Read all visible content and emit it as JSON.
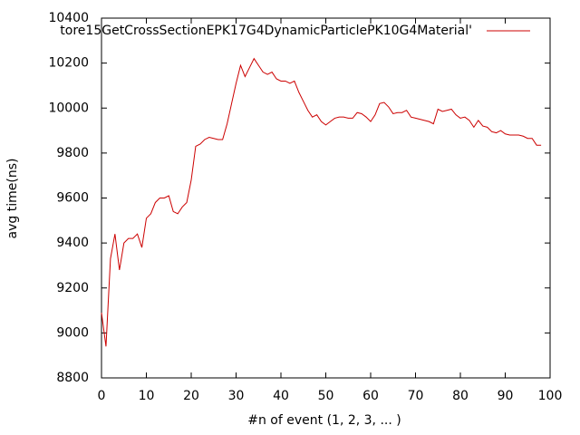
{
  "chart_data": {
    "type": "line",
    "xlabel": "#n of event (1, 2, 3, ... )",
    "ylabel": "avg time(ns)",
    "x": [
      0,
      1,
      2,
      3,
      4,
      5,
      6,
      7,
      8,
      9,
      10,
      11,
      12,
      13,
      14,
      15,
      16,
      17,
      18,
      19,
      20,
      21,
      22,
      23,
      24,
      25,
      26,
      27,
      28,
      29,
      30,
      31,
      32,
      33,
      34,
      35,
      36,
      37,
      38,
      39,
      40,
      41,
      42,
      43,
      44,
      45,
      46,
      47,
      48,
      49,
      50,
      51,
      52,
      53,
      54,
      55,
      56,
      57,
      58,
      59,
      60,
      61,
      62,
      63,
      64,
      65,
      66,
      67,
      68,
      69,
      70,
      71,
      72,
      73,
      74,
      75,
      76,
      77,
      78,
      79,
      80,
      81,
      82,
      83,
      84,
      85,
      86,
      87,
      88,
      89,
      90,
      91,
      92,
      93,
      94,
      95,
      96,
      97,
      98
    ],
    "series": [
      {
        "name": "tore15GetCrossSectionEPK17G4DynamicParticlePK10G4Material'",
        "color": "#cc0000",
        "values": [
          9090,
          8940,
          9330,
          9440,
          9280,
          9400,
          9420,
          9420,
          9440,
          9380,
          9510,
          9530,
          9580,
          9600,
          9600,
          9610,
          9540,
          9530,
          9560,
          9580,
          9680,
          9830,
          9840,
          9860,
          9870,
          9865,
          9860,
          9860,
          9930,
          10020,
          10110,
          10190,
          10140,
          10180,
          10220,
          10190,
          10160,
          10150,
          10160,
          10130,
          10120,
          10120,
          10110,
          10120,
          10070,
          10030,
          9990,
          9960,
          9970,
          9940,
          9925,
          9940,
          9955,
          9960,
          9960,
          9955,
          9955,
          9980,
          9975,
          9960,
          9940,
          9970,
          10020,
          10025,
          10005,
          9975,
          9980,
          9980,
          9990,
          9960,
          9955,
          9950,
          9945,
          9940,
          9930,
          9995,
          9985,
          9990,
          9995,
          9970,
          9955,
          9960,
          9945,
          9915,
          9945,
          9920,
          9915,
          9895,
          9890,
          9900,
          9885,
          9880,
          9880,
          9880,
          9875,
          9865,
          9865,
          9835,
          9835
        ]
      }
    ],
    "xlim": [
      0,
      100
    ],
    "xticks": [
      0,
      10,
      20,
      30,
      40,
      50,
      60,
      70,
      80,
      90,
      100
    ],
    "ylim": [
      8800,
      10400
    ],
    "yticks": [
      8800,
      9000,
      9200,
      9400,
      9600,
      9800,
      10000,
      10200,
      10400
    ],
    "legend": "top-right"
  }
}
